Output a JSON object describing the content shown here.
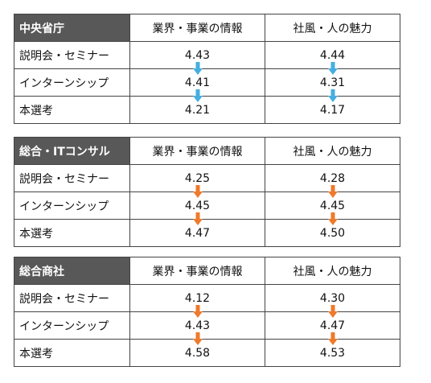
{
  "columns": [
    "業界・事業の情報",
    "社風・人の魅力"
  ],
  "colors": {
    "header_bg": "#585858",
    "arrow_blue": "#45aee0",
    "arrow_orange": "#ee7a2c"
  },
  "tables": [
    {
      "title": "中央省庁",
      "arrow_color": "blue",
      "rows": [
        {
          "label": "説明会・セミナー",
          "values": [
            "4.43",
            "4.44"
          ]
        },
        {
          "label": "インターンシップ",
          "values": [
            "4.41",
            "4.31"
          ]
        },
        {
          "label": "本選考",
          "values": [
            "4.21",
            "4.17"
          ]
        }
      ]
    },
    {
      "title": "総合・ITコンサル",
      "arrow_color": "orange",
      "rows": [
        {
          "label": "説明会・セミナー",
          "values": [
            "4.25",
            "4.28"
          ]
        },
        {
          "label": "インターンシップ",
          "values": [
            "4.45",
            "4.45"
          ]
        },
        {
          "label": "本選考",
          "values": [
            "4.47",
            "4.50"
          ]
        }
      ]
    },
    {
      "title": "総合商社",
      "arrow_color": "orange",
      "rows": [
        {
          "label": "説明会・セミナー",
          "values": [
            "4.12",
            "4.30"
          ]
        },
        {
          "label": "インターンシップ",
          "values": [
            "4.43",
            "4.47"
          ]
        },
        {
          "label": "本選考",
          "values": [
            "4.58",
            "4.53"
          ]
        }
      ]
    }
  ]
}
